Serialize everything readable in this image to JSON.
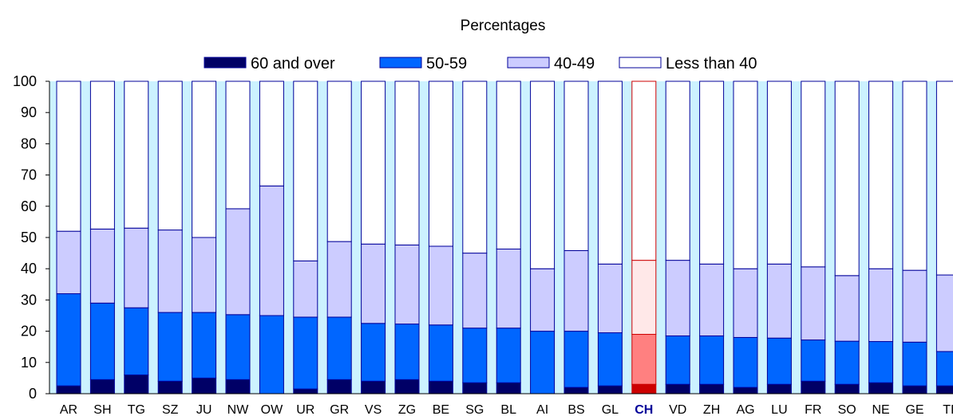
{
  "chart_data": {
    "type": "bar",
    "stacked": true,
    "title": "Percentages",
    "xlabel": "",
    "ylabel": "",
    "ylim": [
      0,
      100
    ],
    "yticks": [
      0,
      10,
      20,
      30,
      40,
      50,
      60,
      70,
      80,
      90,
      100
    ],
    "legend_position": "top-center",
    "highlight_category": "CH",
    "categories": [
      "AR",
      "SH",
      "TG",
      "SZ",
      "JU",
      "NW",
      "OW",
      "UR",
      "GR",
      "VS",
      "ZG",
      "BE",
      "SG",
      "BL",
      "AI",
      "BS",
      "GL",
      "CH",
      "VD",
      "ZH",
      "AG",
      "LU",
      "FR",
      "SO",
      "NE",
      "GE",
      "TI"
    ],
    "series": [
      {
        "name": "60 and over",
        "color": "#000066",
        "highlight_color": "#cc0000",
        "values": [
          2.5,
          4.5,
          6,
          4,
          5,
          4.5,
          0,
          1.5,
          4.5,
          4,
          4.5,
          4,
          3.5,
          3.5,
          0,
          2,
          2.5,
          3,
          3,
          3,
          2,
          3,
          4,
          3,
          3.5,
          2.5,
          2.5
        ]
      },
      {
        "name": "50-59",
        "color": "#0066ff",
        "highlight_color": "#ff8080",
        "values": [
          29.5,
          24.5,
          21.5,
          22,
          21,
          20.8,
          25,
          23,
          20,
          18.5,
          17.8,
          18,
          17.5,
          17.5,
          20,
          18,
          17,
          16,
          15.5,
          15.5,
          16,
          14.8,
          13.2,
          13.8,
          13.2,
          14,
          11
        ]
      },
      {
        "name": "40-49",
        "color": "#ccccff",
        "highlight_color": "#ffe8e8",
        "values": [
          20,
          23.7,
          25.5,
          26.4,
          24,
          33.9,
          41.5,
          18,
          24.2,
          25.4,
          25.3,
          25.2,
          24,
          25.3,
          20,
          25.8,
          22,
          23.7,
          24.2,
          23,
          22,
          23.7,
          23.4,
          21,
          23.3,
          23,
          24.5
        ]
      },
      {
        "name": "Less than 40",
        "color": "#ffffff",
        "highlight_color": "#ffffff",
        "values": [
          48,
          47.3,
          47,
          47.6,
          50,
          40.8,
          33.5,
          57.5,
          51.3,
          52.1,
          52.4,
          52.8,
          55,
          53.7,
          60,
          54.2,
          58.5,
          57.3,
          57.3,
          58.5,
          60,
          58.5,
          59.4,
          62.2,
          60,
          60.5,
          62
        ]
      }
    ],
    "colors": {
      "plot_background": "#ccf2ff",
      "bar_outline": "#000099",
      "highlight_outline": "#cc0000",
      "highlight_label": "#000099"
    }
  }
}
